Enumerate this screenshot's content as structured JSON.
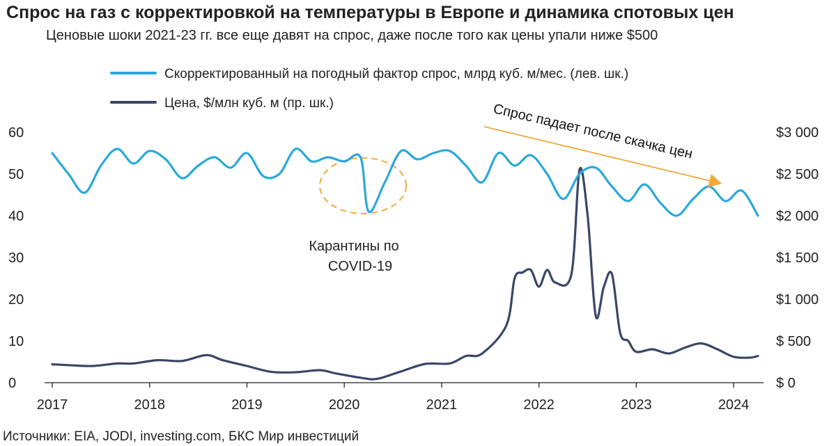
{
  "title": "Спрос на газ с корректировкой на температуры в Европе и динамика спотовых цен",
  "subtitle": "Ценовые шоки 2021-23 гг. все еще давят на спрос, даже после того как цены упали ниже $500",
  "source": "Источники: EIA, JODI, investing.com, БКС Мир инвестиций",
  "colors": {
    "demand": "#29a9d9",
    "price": "#3b4666",
    "arrow": "#f2a93b",
    "ellipse": "#f2a93b",
    "text": "#222222"
  },
  "chart_data": {
    "type": "line",
    "legend_placement": "top-left",
    "grid": false,
    "x_ticks": [
      "2017",
      "2018",
      "2019",
      "2020",
      "2021",
      "2022",
      "2023",
      "2024"
    ],
    "xlim": [
      "2017-01",
      "2024-04"
    ],
    "left_axis": {
      "ticks": [
        "0",
        "10",
        "20",
        "30",
        "40",
        "50",
        "60"
      ],
      "ylim": [
        0,
        60
      ]
    },
    "right_axis": {
      "ticks": [
        "$ 0",
        "$ 500",
        "$1 000",
        "$1 500",
        "$2 000",
        "$2 500",
        "$3 000"
      ],
      "ylim": [
        0,
        3000
      ]
    },
    "annotations": [
      {
        "text_lines": [
          "Карантины по",
          "COVID-19"
        ]
      },
      {
        "text": "Спрос падает после скачка цен"
      }
    ],
    "series": [
      {
        "name": "Скорректированный на погодный фактор спрос, млрд куб. м/мес. (лев. шк.)",
        "axis": "left",
        "x": [
          "2017-01",
          "2017-03",
          "2017-05",
          "2017-07",
          "2017-09",
          "2017-11",
          "2018-01",
          "2018-03",
          "2018-05",
          "2018-07",
          "2018-09",
          "2018-11",
          "2019-01",
          "2019-03",
          "2019-05",
          "2019-07",
          "2019-09",
          "2019-11",
          "2020-01",
          "2020-03",
          "2020-04",
          "2020-06",
          "2020-08",
          "2020-10",
          "2020-12",
          "2021-02",
          "2021-04",
          "2021-06",
          "2021-08",
          "2021-10",
          "2021-12",
          "2022-02",
          "2022-04",
          "2022-06",
          "2022-08",
          "2022-10",
          "2022-12",
          "2023-02",
          "2023-04",
          "2023-06",
          "2023-08",
          "2023-10",
          "2023-12",
          "2024-02",
          "2024-04"
        ],
        "y": [
          55,
          50,
          45.5,
          52,
          56,
          52.5,
          55.5,
          53.5,
          49,
          52,
          54,
          51.5,
          55,
          49.5,
          50,
          56,
          53,
          54,
          53,
          54,
          41,
          48,
          55.5,
          53.5,
          55,
          55.5,
          52,
          48,
          55,
          52,
          54.5,
          50,
          44,
          50,
          51.5,
          47,
          43.5,
          47.5,
          43,
          40,
          44,
          47,
          43.5,
          46,
          40
        ]
      },
      {
        "name": "Цена, $/млн куб. м (пр. шк.)",
        "axis": "right",
        "x": [
          "2017-01",
          "2017-03",
          "2017-06",
          "2017-09",
          "2017-11",
          "2018-02",
          "2018-05",
          "2018-08",
          "2018-10",
          "2019-01",
          "2019-04",
          "2019-07",
          "2019-10",
          "2019-12",
          "2020-03",
          "2020-05",
          "2020-08",
          "2020-11",
          "2021-02",
          "2021-04",
          "2021-06",
          "2021-09",
          "2021-10",
          "2021-11",
          "2021-12",
          "2022-01",
          "2022-02",
          "2022-03",
          "2022-05",
          "2022-06",
          "2022-07",
          "2022-08",
          "2022-09",
          "2022-10",
          "2022-11",
          "2022-12",
          "2023-01",
          "2023-03",
          "2023-05",
          "2023-07",
          "2023-09",
          "2023-11",
          "2024-01",
          "2024-03",
          "2024-04"
        ],
        "y": [
          220,
          210,
          200,
          230,
          230,
          270,
          260,
          330,
          270,
          200,
          130,
          125,
          150,
          110,
          60,
          45,
          135,
          225,
          230,
          320,
          350,
          690,
          1250,
          1320,
          1350,
          1150,
          1350,
          1200,
          1300,
          2550,
          2000,
          800,
          1150,
          1300,
          600,
          500,
          370,
          400,
          350,
          420,
          470,
          400,
          310,
          300,
          320
        ]
      }
    ]
  }
}
